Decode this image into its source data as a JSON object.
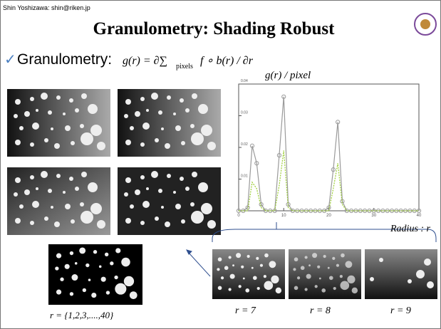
{
  "header": {
    "author": "Shin Yoshizawa: shin@riken.jp",
    "title": "Granulometry: Shading Robust"
  },
  "bullet": {
    "label": "Granulometry:",
    "formula": "g(r) = ∂∑",
    "subscript": "pixels",
    "formula_tail": "f ∘ b(r) / ∂r"
  },
  "chart_data": {
    "type": "line",
    "ylabel": "g(r) / pixel",
    "xlabel": "Radius : r",
    "x": [
      0,
      1,
      2,
      3,
      4,
      5,
      6,
      7,
      8,
      9,
      10,
      11,
      12,
      13,
      14,
      15,
      16,
      17,
      18,
      19,
      20,
      21,
      22,
      23,
      24,
      25,
      26,
      27,
      28,
      29,
      30,
      31,
      32,
      33,
      34,
      35,
      36,
      37,
      38,
      39,
      40
    ],
    "series": [
      {
        "color": "#9a9a9a",
        "values": [
          0,
          0,
          0.001,
          0.0205,
          0.015,
          0.002,
          0,
          0,
          0,
          0.0175,
          0.036,
          0.002,
          0,
          0,
          0,
          0,
          0,
          0,
          0,
          0,
          0.001,
          0.013,
          0.028,
          0.003,
          0,
          0,
          0,
          0,
          0,
          0,
          0,
          0,
          0,
          0,
          0,
          0,
          0,
          0,
          0,
          0,
          0
        ]
      },
      {
        "color": "#9acd32",
        "values": [
          0,
          0,
          0,
          0.009,
          0.007,
          0.001,
          0,
          0,
          0,
          0.008,
          0.019,
          0.001,
          0,
          0,
          0,
          0,
          0,
          0,
          0,
          0,
          0,
          0.007,
          0.015,
          0.002,
          0,
          0,
          0,
          0,
          0,
          0,
          0,
          0,
          0,
          0,
          0,
          0,
          0,
          0,
          0,
          0,
          0
        ]
      }
    ],
    "xlim": [
      0,
      40
    ],
    "ylim": [
      0,
      0.04
    ],
    "xticks": [
      0,
      10,
      20,
      30,
      40
    ],
    "yticks": [
      0.01,
      0.02,
      0.03,
      0.04
    ]
  },
  "captions": {
    "all_radii": "r = {1,2,3,....,40}",
    "r7": "r = 7",
    "r8": "r = 8",
    "r9": "r = 9"
  }
}
